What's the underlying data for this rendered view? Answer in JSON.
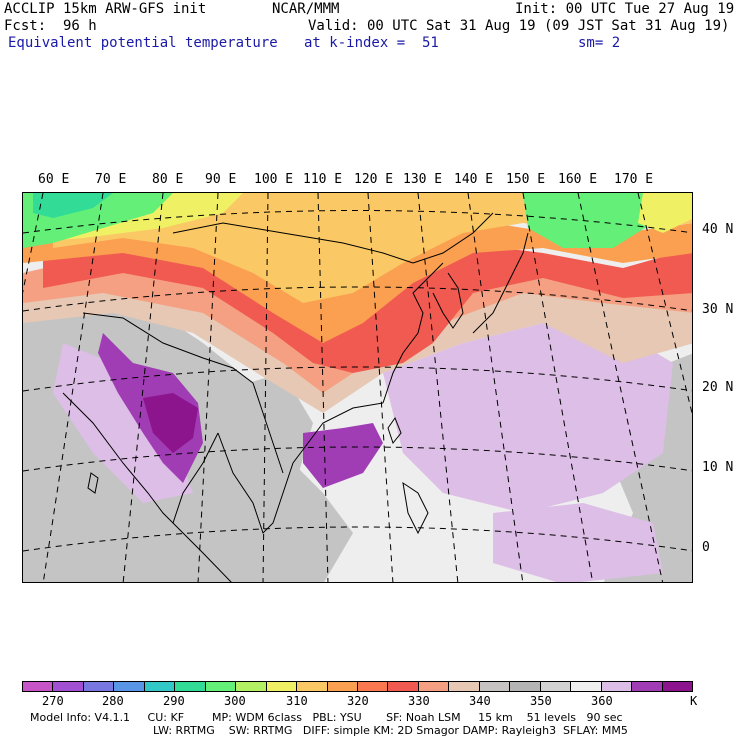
{
  "header": {
    "model": "ACCLIP 15km ARW-GFS init",
    "org": "NCAR/MMM",
    "init": "Init: 00 UTC Tue 27 Aug 19",
    "fcst": "Fcst:  96 h",
    "valid": "Valid: 00 UTC Sat 31 Aug 19 (09 JST Sat 31 Aug 19)",
    "field": "Equivalent potential temperature",
    "level": "at k-index =  51",
    "smooth": "sm= 2"
  },
  "lon_labels": [
    "60 E",
    "70 E",
    "80 E",
    "90 E",
    "100 E",
    "110 E",
    "120 E",
    "130 E",
    "140 E",
    "150 E",
    "160 E",
    "170 E"
  ],
  "lat_labels": [
    "40 N",
    "30 N",
    "20 N",
    "10 N",
    "0"
  ],
  "colorbar": {
    "colors": [
      "#c855c8",
      "#a050d0",
      "#7878e0",
      "#5a96e6",
      "#32c8c8",
      "#32dc96",
      "#64f078",
      "#b4f064",
      "#f0f064",
      "#fac864",
      "#faa050",
      "#fa7850",
      "#f05a50",
      "#f5a082",
      "#e6c8b4",
      "#c8c3c3",
      "#b4b4b4",
      "#d2d2d2",
      "#f0f0f0",
      "#dcbee6",
      "#a03cb4",
      "#8c148c"
    ],
    "ticks": [
      "270",
      "280",
      "290",
      "300",
      "310",
      "320",
      "330",
      "340",
      "350",
      "360"
    ],
    "unit": "K"
  },
  "footer": {
    "line1": "Model Info: V4.1.1     CU: KF        MP: WDM 6class   PBL: YSU       SF: Noah LSM     15 km    51 levels   90 sec",
    "line2": "LW: RRTMG    SW: RRTMG   DIFF: simple KM: 2D Smagor DAMP: Rayleigh3  SFLAY: MM5"
  },
  "map": {
    "colors": {
      "ocean": "#eeeeee",
      "gray": "#c4c4c4",
      "green": "#64f078",
      "teal": "#32dc96",
      "yellow": "#f0f064",
      "orange": "#fac864",
      "dkorange": "#faa050",
      "red": "#f05a50",
      "salmon": "#f5a082",
      "tan": "#e6c8b4",
      "lilac": "#dcbee6",
      "purple": "#a03cb4",
      "dkpurple": "#8c148c"
    }
  }
}
